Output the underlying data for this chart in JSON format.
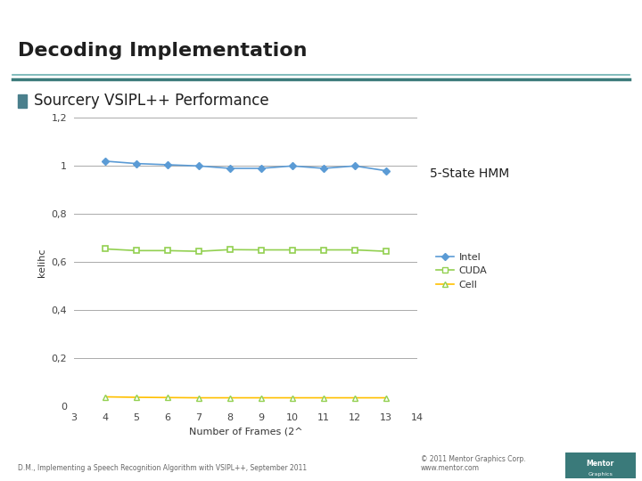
{
  "title": "Decoding Implementation",
  "subtitle": "Sourcery VSIPL++ Performance",
  "subtitle_bullet_color": "#4a7f8c",
  "annotation": "5-State HMM",
  "xlabel": "Number of Frames (2^",
  "ylabel": "kelihc",
  "x_values": [
    4,
    5,
    6,
    7,
    8,
    9,
    10,
    11,
    12,
    13
  ],
  "xlim": [
    3,
    14
  ],
  "ylim": [
    0,
    1.2
  ],
  "yticks": [
    0,
    0.2,
    0.4,
    0.6,
    0.8,
    1.0,
    1.2
  ],
  "ytick_labels": [
    "0",
    "0,2",
    "0,4",
    "0,6",
    "0,8",
    "1",
    "1,2"
  ],
  "xticks": [
    3,
    4,
    5,
    6,
    7,
    8,
    9,
    10,
    11,
    12,
    13,
    14
  ],
  "intel_values": [
    1.02,
    1.01,
    1.005,
    1.0,
    0.99,
    0.99,
    1.0,
    0.99,
    1.0,
    0.98
  ],
  "cuda_values": [
    0.655,
    0.648,
    0.648,
    0.645,
    0.652,
    0.651,
    0.651,
    0.651,
    0.651,
    0.645
  ],
  "cell_values": [
    0.04,
    0.038,
    0.037,
    0.036,
    0.036,
    0.036,
    0.036,
    0.036,
    0.036,
    0.036
  ],
  "intel_color": "#5b9bd5",
  "cuda_color": "#92d050",
  "cell_color": "#ffc000",
  "intel_marker": "D",
  "cuda_marker": "s",
  "cell_marker": "^",
  "legend_labels": [
    "Intel",
    "CUDA",
    "Cell"
  ],
  "title_color": "#1f1f1f",
  "title_fontsize": 16,
  "subtitle_fontsize": 12,
  "annotation_fontsize": 10,
  "bg_color": "#ffffff",
  "grid_color": "#aaaaaa",
  "footer_left": "D.M., Implementing a Speech Recognition Algorithm with VSIPL++, September 2011",
  "footer_right": "© 2011 Mentor Graphics Corp.\nwww.mentor.com",
  "title_line_color1": "#6bb0b0",
  "title_line_color2": "#3a7a7a"
}
